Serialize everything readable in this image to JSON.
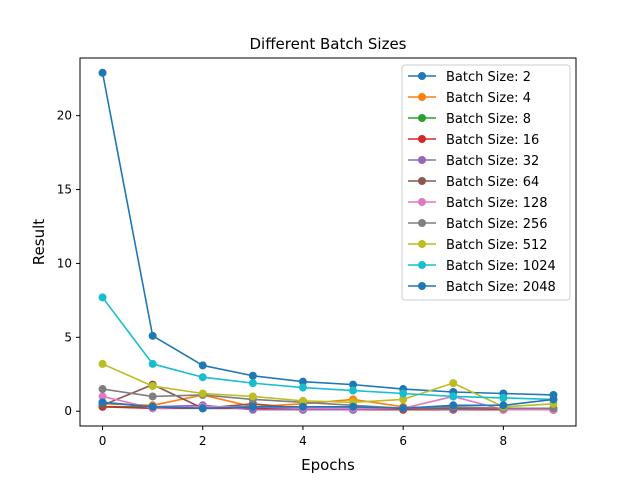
{
  "chart_data": {
    "type": "line",
    "title": "Different Batch Sizes",
    "xlabel": "Epochs",
    "ylabel": "Result",
    "xlim": [
      -0.45,
      9.45
    ],
    "ylim": [
      -1.0,
      23.9
    ],
    "xticks": [
      0,
      2,
      4,
      6,
      8
    ],
    "yticks": [
      0,
      5,
      10,
      15,
      20
    ],
    "grid": false,
    "legend_position": "top-right",
    "x": [
      0,
      1,
      2,
      3,
      4,
      5,
      6,
      7,
      8,
      9
    ],
    "series": [
      {
        "name": "Batch Size: 2",
        "color": "#1f77b4",
        "values": [
          22.9,
          5.1,
          3.1,
          2.4,
          2.0,
          1.8,
          1.5,
          1.3,
          1.2,
          1.1
        ]
      },
      {
        "name": "Batch Size: 4",
        "color": "#ff7f0e",
        "values": [
          0.5,
          0.4,
          1.1,
          0.3,
          0.5,
          0.8,
          0.3,
          0.2,
          0.2,
          0.2
        ]
      },
      {
        "name": "Batch Size: 8",
        "color": "#2ca02c",
        "values": [
          0.3,
          0.3,
          0.2,
          0.2,
          0.2,
          0.2,
          0.2,
          0.1,
          0.1,
          0.1
        ]
      },
      {
        "name": "Batch Size: 16",
        "color": "#d62728",
        "values": [
          0.3,
          0.2,
          0.2,
          0.2,
          0.1,
          0.1,
          0.1,
          0.1,
          0.1,
          0.1
        ]
      },
      {
        "name": "Batch Size: 32",
        "color": "#9467bd",
        "values": [
          0.6,
          0.3,
          0.4,
          0.1,
          0.1,
          0.1,
          0.2,
          0.1,
          0.2,
          0.1
        ]
      },
      {
        "name": "Batch Size: 64",
        "color": "#8c564b",
        "values": [
          0.4,
          1.8,
          0.2,
          0.5,
          0.2,
          0.3,
          0.2,
          0.2,
          0.2,
          0.1
        ]
      },
      {
        "name": "Batch Size: 128",
        "color": "#e377c2",
        "values": [
          1.0,
          0.2,
          0.3,
          0.3,
          0.2,
          0.2,
          0.2,
          1.0,
          0.1,
          0.1
        ]
      },
      {
        "name": "Batch Size: 256",
        "color": "#7f7f7f",
        "values": [
          1.5,
          1.0,
          1.1,
          0.8,
          0.6,
          0.4,
          0.2,
          0.3,
          0.2,
          0.2
        ]
      },
      {
        "name": "Batch Size: 512",
        "color": "#bcbd22",
        "values": [
          3.2,
          1.7,
          1.2,
          1.0,
          0.7,
          0.6,
          0.8,
          1.9,
          0.3,
          0.5
        ]
      },
      {
        "name": "Batch Size: 1024",
        "color": "#17becf",
        "values": [
          7.7,
          3.2,
          2.3,
          1.9,
          1.6,
          1.4,
          1.2,
          1.0,
          0.9,
          0.8
        ]
      },
      {
        "name": "Batch Size: 2048",
        "color": "#1f77b4",
        "values": [
          0.6,
          0.3,
          0.2,
          0.3,
          0.3,
          0.3,
          0.2,
          0.4,
          0.4,
          0.8
        ]
      }
    ]
  }
}
